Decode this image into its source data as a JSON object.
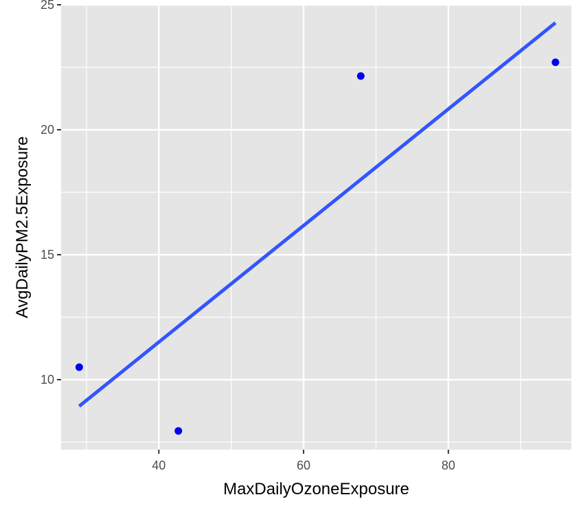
{
  "chart_data": {
    "type": "scatter",
    "title": "",
    "xlabel": "MaxDailyOzoneExposure",
    "ylabel": "AvgDailyPM2.5Exposure",
    "xlim": [
      26.5,
      97.0
    ],
    "ylim": [
      7.2,
      25.0
    ],
    "x_ticks": [
      40,
      60,
      80
    ],
    "x_minor_ticks": [
      30,
      50,
      70,
      90
    ],
    "y_ticks": [
      10,
      15,
      20,
      25
    ],
    "y_minor_ticks": [
      7.5,
      12.5,
      17.5,
      22.5
    ],
    "grid": true,
    "legend": "none",
    "points": [
      {
        "x": 29.0,
        "y": 10.5
      },
      {
        "x": 42.7,
        "y": 7.95
      },
      {
        "x": 67.9,
        "y": 22.15
      },
      {
        "x": 94.8,
        "y": 22.7
      }
    ],
    "fit_line": {
      "x": [
        29.0,
        94.8
      ],
      "y": [
        8.94,
        24.28
      ]
    },
    "colors": {
      "panel_background": "#e5e5e5",
      "grid": "#ffffff",
      "point": "#0000ee",
      "fit_line": "#3355ff"
    }
  }
}
